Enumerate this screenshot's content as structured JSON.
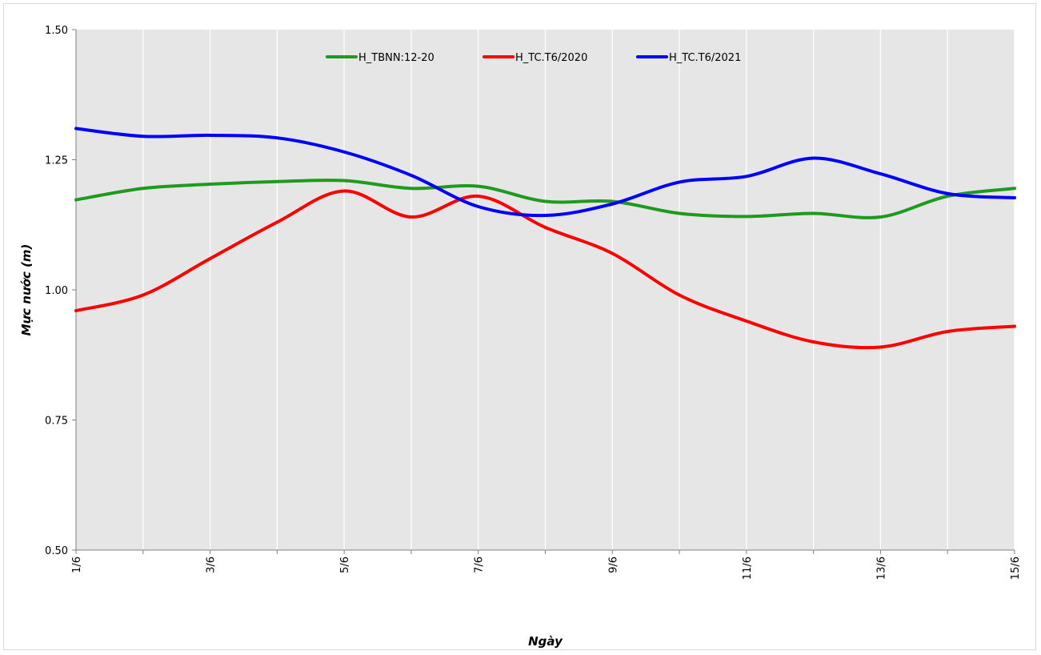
{
  "chart_data": {
    "type": "line",
    "xlabel": "Ngày",
    "ylabel": "Mực nước (m)",
    "ylim": [
      0.5,
      1.5
    ],
    "yticks": [
      "0.50",
      "0.75",
      "1.00",
      "1.25",
      "1.50"
    ],
    "x": [
      1,
      2,
      3,
      4,
      5,
      6,
      7,
      8,
      9,
      10,
      11,
      12,
      13,
      14,
      15
    ],
    "xtick_labels": [
      "1/6",
      "",
      "3/6",
      "",
      "5/6",
      "",
      "7/6",
      "",
      "9/6",
      "",
      "11/6",
      "",
      "13/6",
      "",
      "15/6"
    ],
    "grid": "vertical",
    "legend": "top-center",
    "plot_background": "#e6e6e6",
    "series": [
      {
        "name": "H_TBNN:12-20",
        "color": "#1f9a1f",
        "values": [
          1.173,
          1.195,
          1.203,
          1.208,
          1.21,
          1.195,
          1.199,
          1.17,
          1.17,
          1.147,
          1.141,
          1.147,
          1.14,
          1.18,
          1.195
        ]
      },
      {
        "name": "H_TC.T6/2020",
        "color": "#ff0000",
        "values": [
          0.96,
          0.99,
          1.06,
          1.13,
          1.19,
          1.14,
          1.18,
          1.12,
          1.07,
          0.99,
          0.94,
          0.9,
          0.89,
          0.92,
          0.93
        ]
      },
      {
        "name": "H_TC.T6/2021",
        "color": "#0000ff",
        "values": [
          1.31,
          1.295,
          1.297,
          1.292,
          1.265,
          1.22,
          1.16,
          1.143,
          1.165,
          1.207,
          1.218,
          1.253,
          1.223,
          1.185,
          1.177
        ]
      }
    ]
  }
}
